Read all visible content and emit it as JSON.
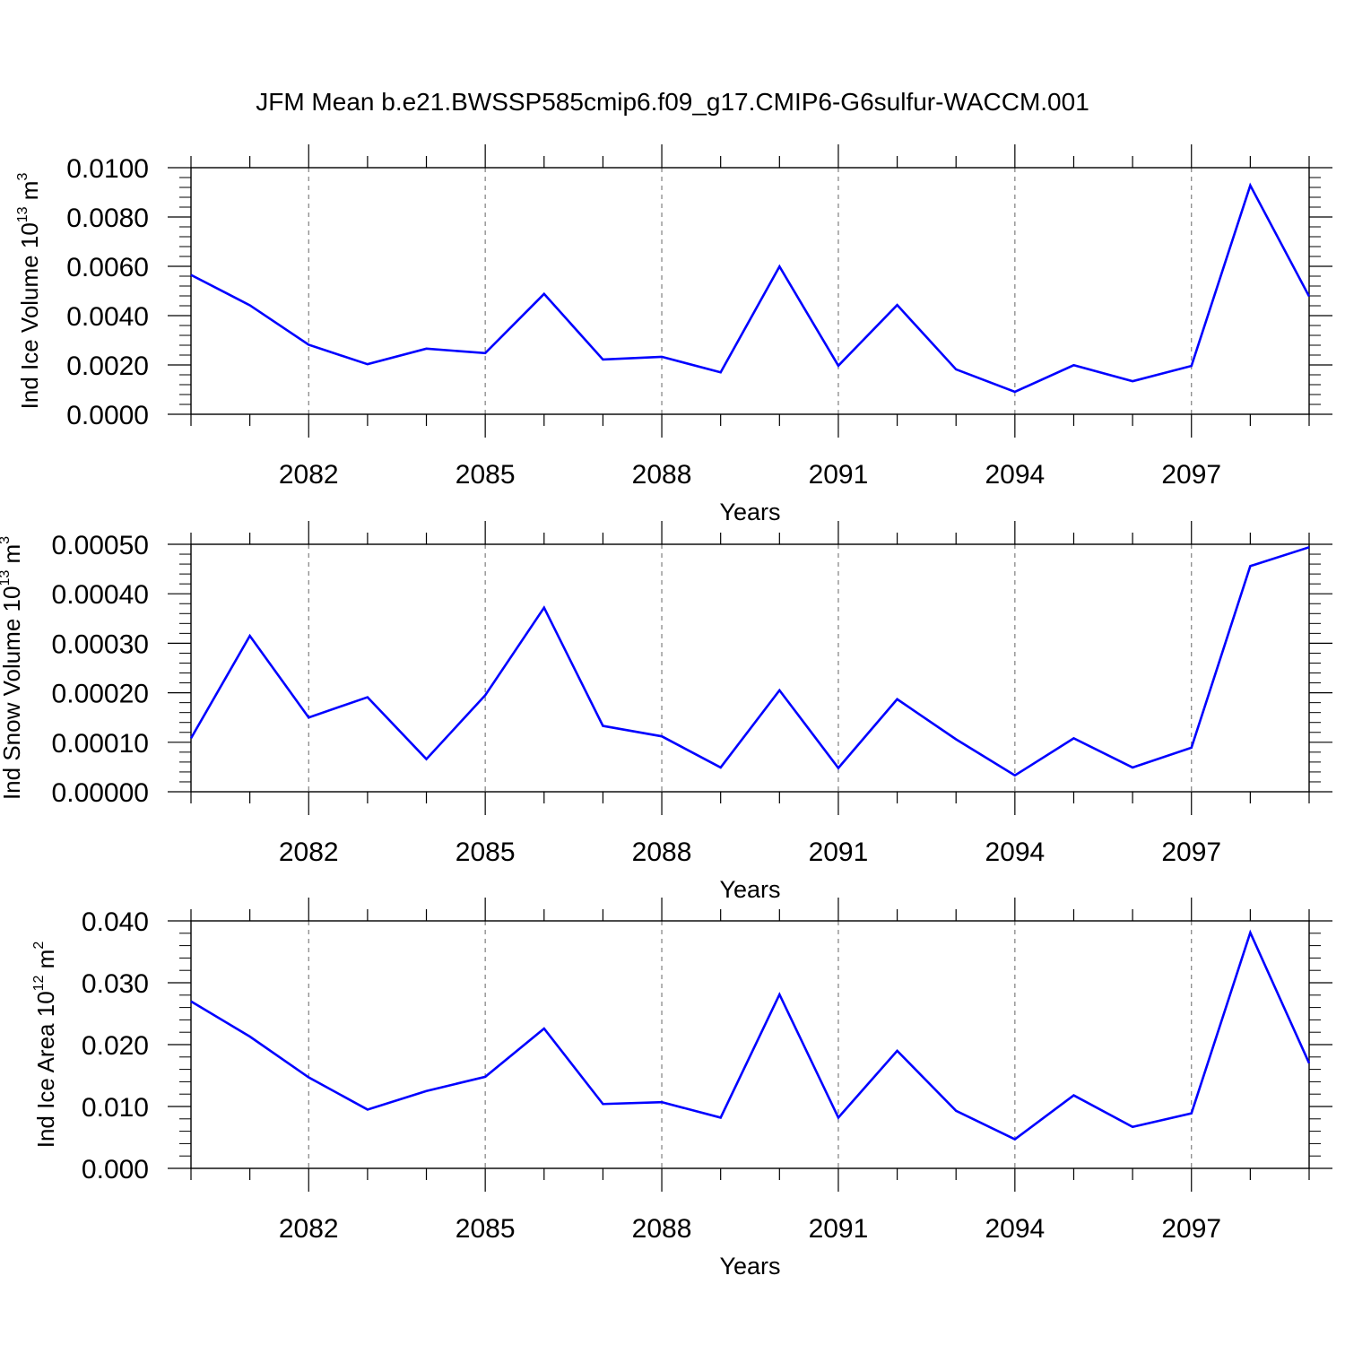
{
  "title": "JFM Mean b.e21.BWSSP585cmip6.f09_g17.CMIP6-G6sulfur-WACCM.001",
  "colors": {
    "line": "#0000ff",
    "axis": "#000000",
    "grid": "#7f7f7f"
  },
  "chart_data": [
    {
      "type": "line",
      "xlabel": "Years",
      "ylabel": {
        "text": "Ind Ice Volume 10",
        "exp": "13",
        "unit": " m",
        "unit_exp": "3"
      },
      "xlim": [
        2080,
        2099
      ],
      "ylim": [
        0,
        0.01
      ],
      "yticks": [
        "0.0000",
        "0.0020",
        "0.0040",
        "0.0060",
        "0.0080",
        "0.0100"
      ],
      "xticks": [
        "2082",
        "2085",
        "2088",
        "2091",
        "2094",
        "2097"
      ],
      "grid_x": true,
      "x": [
        2080,
        2081,
        2082,
        2083,
        2084,
        2085,
        2086,
        2087,
        2088,
        2089,
        2090,
        2091,
        2092,
        2093,
        2094,
        2095,
        2096,
        2097,
        2098,
        2099
      ],
      "series": [
        {
          "values": [
            0.00565,
            0.00442,
            0.00282,
            0.00203,
            0.00266,
            0.00248,
            0.00488,
            0.00222,
            0.00233,
            0.0017,
            0.00599,
            0.00197,
            0.00443,
            0.00182,
            0.00091,
            0.00199,
            0.00134,
            0.00196,
            0.00928,
            0.00478
          ]
        }
      ]
    },
    {
      "type": "line",
      "xlabel": "Years",
      "ylabel": {
        "text": "Ind Snow Volume 10",
        "exp": "13",
        "unit": " m",
        "unit_exp": "3"
      },
      "xlim": [
        2080,
        2099
      ],
      "ylim": [
        0,
        0.0005
      ],
      "yticks": [
        "0.00000",
        "0.00010",
        "0.00020",
        "0.00030",
        "0.00040",
        "0.00050"
      ],
      "xticks": [
        "2082",
        "2085",
        "2088",
        "2091",
        "2094",
        "2097"
      ],
      "grid_x": true,
      "x": [
        2080,
        2081,
        2082,
        2083,
        2084,
        2085,
        2086,
        2087,
        2088,
        2089,
        2090,
        2091,
        2092,
        2093,
        2094,
        2095,
        2096,
        2097,
        2098,
        2099
      ],
      "series": [
        {
          "values": [
            0.000108,
            0.000315,
            0.00015,
            0.000191,
            6.6e-05,
            0.000195,
            0.000372,
            0.000133,
            0.000112,
            4.9e-05,
            0.000205,
            4.8e-05,
            0.000187,
            0.000106,
            3.3e-05,
            0.000108,
            4.9e-05,
            8.9e-05,
            0.000456,
            0.000494
          ]
        }
      ]
    },
    {
      "type": "line",
      "xlabel": "Years",
      "ylabel": {
        "text": "Ind Ice Area 10",
        "exp": "12",
        "unit": " m",
        "unit_exp": "2"
      },
      "xlim": [
        2080,
        2099
      ],
      "ylim": [
        0,
        0.04
      ],
      "yticks": [
        "0.000",
        "0.010",
        "0.020",
        "0.030",
        "0.040"
      ],
      "xticks": [
        "2082",
        "2085",
        "2088",
        "2091",
        "2094",
        "2097"
      ],
      "grid_x": true,
      "x": [
        2080,
        2081,
        2082,
        2083,
        2084,
        2085,
        2086,
        2087,
        2088,
        2089,
        2090,
        2091,
        2092,
        2093,
        2094,
        2095,
        2096,
        2097,
        2098,
        2099
      ],
      "series": [
        {
          "values": [
            0.027,
            0.0213,
            0.0147,
            0.0095,
            0.0125,
            0.0148,
            0.0226,
            0.0104,
            0.0107,
            0.0082,
            0.0281,
            0.0082,
            0.019,
            0.0093,
            0.0047,
            0.0118,
            0.0067,
            0.0089,
            0.0381,
            0.017
          ]
        }
      ]
    }
  ]
}
